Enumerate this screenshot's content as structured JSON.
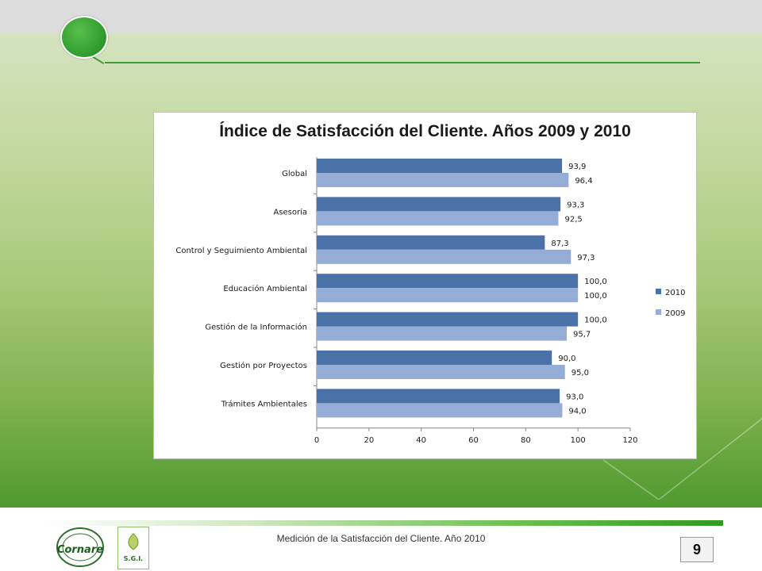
{
  "footer": {
    "text": "Medición de la Satisfacción del Cliente. Año 2010",
    "page_number": "9"
  },
  "logos": {
    "cornare_text": "Cornare",
    "sgi_text": "S.G.I."
  },
  "chart_data": {
    "type": "bar",
    "orientation": "horizontal",
    "title": "Índice de Satisfacción del Cliente. Años 2009 y 2010",
    "categories": [
      "Global",
      "Asesoría",
      "Control y Seguimiento Ambiental",
      "Educación Ambiental",
      "Gestión de la Información",
      "Gestión por Proyectos",
      "Trámites Ambientales"
    ],
    "series": [
      {
        "name": "2010",
        "color": "#4a72a8",
        "values": [
          93.9,
          93.3,
          87.3,
          100.0,
          100.0,
          90.0,
          93.0
        ],
        "labels": [
          "93,9",
          "93,3",
          "87,3",
          "100,0",
          "100,0",
          "90,0",
          "93,0"
        ]
      },
      {
        "name": "2009",
        "color": "#95acd6",
        "values": [
          96.4,
          92.5,
          97.3,
          100.0,
          95.7,
          95.0,
          94.0
        ],
        "labels": [
          "96,4",
          "92,5",
          "97,3",
          "100,0",
          "95,7",
          "95,0",
          "94,0"
        ]
      }
    ],
    "xlim": [
      0,
      120
    ],
    "xticks": [
      "0",
      "20",
      "40",
      "60",
      "80",
      "100",
      "120"
    ],
    "legend": "right",
    "grid": false
  }
}
